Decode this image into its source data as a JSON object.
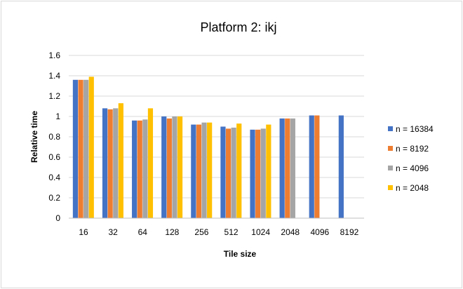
{
  "chart_data": {
    "type": "bar",
    "title": "Platform 2: ikj",
    "xlabel": "Tile size",
    "ylabel": "Relative time",
    "ylim": [
      0,
      1.6
    ],
    "yticks": [
      "0",
      "0.2",
      "0.4",
      "0.6",
      "0.8",
      "1",
      "1.2",
      "1.4",
      "1.6"
    ],
    "categories": [
      "16",
      "32",
      "64",
      "128",
      "256",
      "512",
      "1024",
      "2048",
      "4096",
      "8192"
    ],
    "grid": true,
    "legend_position": "right",
    "series": [
      {
        "name": "n = 16384",
        "color": "#4472c4",
        "values": [
          1.36,
          1.08,
          0.96,
          1.0,
          0.92,
          0.9,
          0.87,
          0.98,
          1.01,
          1.01
        ]
      },
      {
        "name": "n = 8192",
        "color": "#ed7d31",
        "values": [
          1.36,
          1.07,
          0.96,
          0.98,
          0.92,
          0.88,
          0.87,
          0.98,
          1.01,
          null
        ]
      },
      {
        "name": "n = 4096",
        "color": "#a5a5a5",
        "values": [
          1.36,
          1.08,
          0.97,
          1.0,
          0.94,
          0.89,
          0.88,
          0.98,
          null,
          null
        ]
      },
      {
        "name": "n = 2048",
        "color": "#ffc000",
        "values": [
          1.39,
          1.13,
          1.08,
          1.0,
          0.94,
          0.93,
          0.92,
          null,
          null,
          null
        ]
      }
    ]
  }
}
